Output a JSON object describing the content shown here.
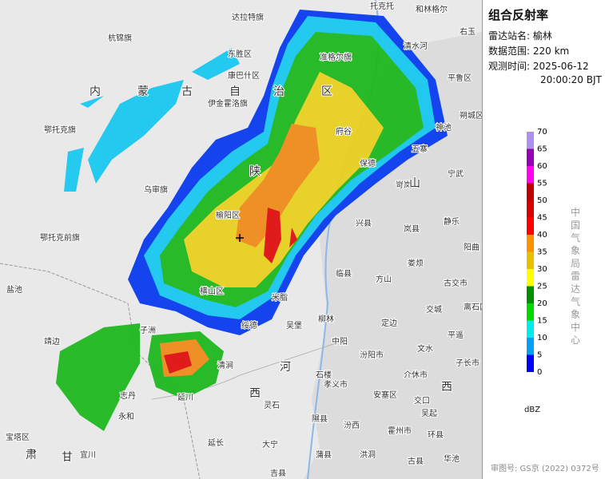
{
  "panel": {
    "title": "组合反射率",
    "rows": [
      {
        "label": "雷达站名:",
        "value": "榆林"
      },
      {
        "label": "数据范围:",
        "value": "220 km"
      },
      {
        "label": "观测时间:",
        "value": "2025-06-12",
        "value2": "20:00:20 BJT"
      }
    ]
  },
  "legend": {
    "ticks": [
      0,
      5,
      10,
      15,
      20,
      25,
      30,
      35,
      40,
      45,
      50,
      55,
      60,
      65,
      70
    ],
    "colors": [
      "#0000f6",
      "#01a0f6",
      "#00ecec",
      "#00d800",
      "#019000",
      "#ffff00",
      "#e7c000",
      "#ff9000",
      "#ff0000",
      "#d60000",
      "#c00000",
      "#ff00f0",
      "#9600b4",
      "#ad90f0"
    ],
    "unit": "dBZ",
    "org": "中国气象局雷达气象中心"
  },
  "footer": "审图号: GS京 (2022) 0372号",
  "map": {
    "labels": [
      "托克托",
      "和林格尔",
      "达拉特旗",
      "杭锦旗",
      "东胜区",
      "康巴什区",
      "伊金霍洛旗",
      "准格尔旗",
      "清水河",
      "右玉",
      "平鲁区",
      "朔城区",
      "内",
      "蒙",
      "古",
      "自",
      "治",
      "区",
      "鄂托克旗",
      "府谷",
      "神池",
      "五寨",
      "宁武",
      "保德",
      "岢岚",
      "乌审旗",
      "陕",
      "山",
      "榆阳区",
      "兴县",
      "岚县",
      "静乐",
      "鄂托克前旗",
      "临县",
      "方山",
      "娄烦",
      "阳曲",
      "古交市",
      "盐池",
      "横山区",
      "米脂",
      "交城",
      "离石区",
      "定边",
      "靖边",
      "子洲",
      "绥德",
      "吴堡",
      "柳林",
      "中阳",
      "汾阳市",
      "文水",
      "平遥",
      "子长市",
      "清涧",
      "河",
      "石楼",
      "孝义市",
      "介休市",
      "西",
      "西",
      "交口",
      "安塞区",
      "延川",
      "灵石",
      "吴起",
      "志丹",
      "永和",
      "隰县",
      "汾西",
      "霍州市",
      "环县",
      "宝塔区",
      "延长",
      "大宁",
      "蒲县",
      "洪洞",
      "古县",
      "华池",
      "甘",
      "肃",
      "宜川",
      "吉县"
    ]
  }
}
